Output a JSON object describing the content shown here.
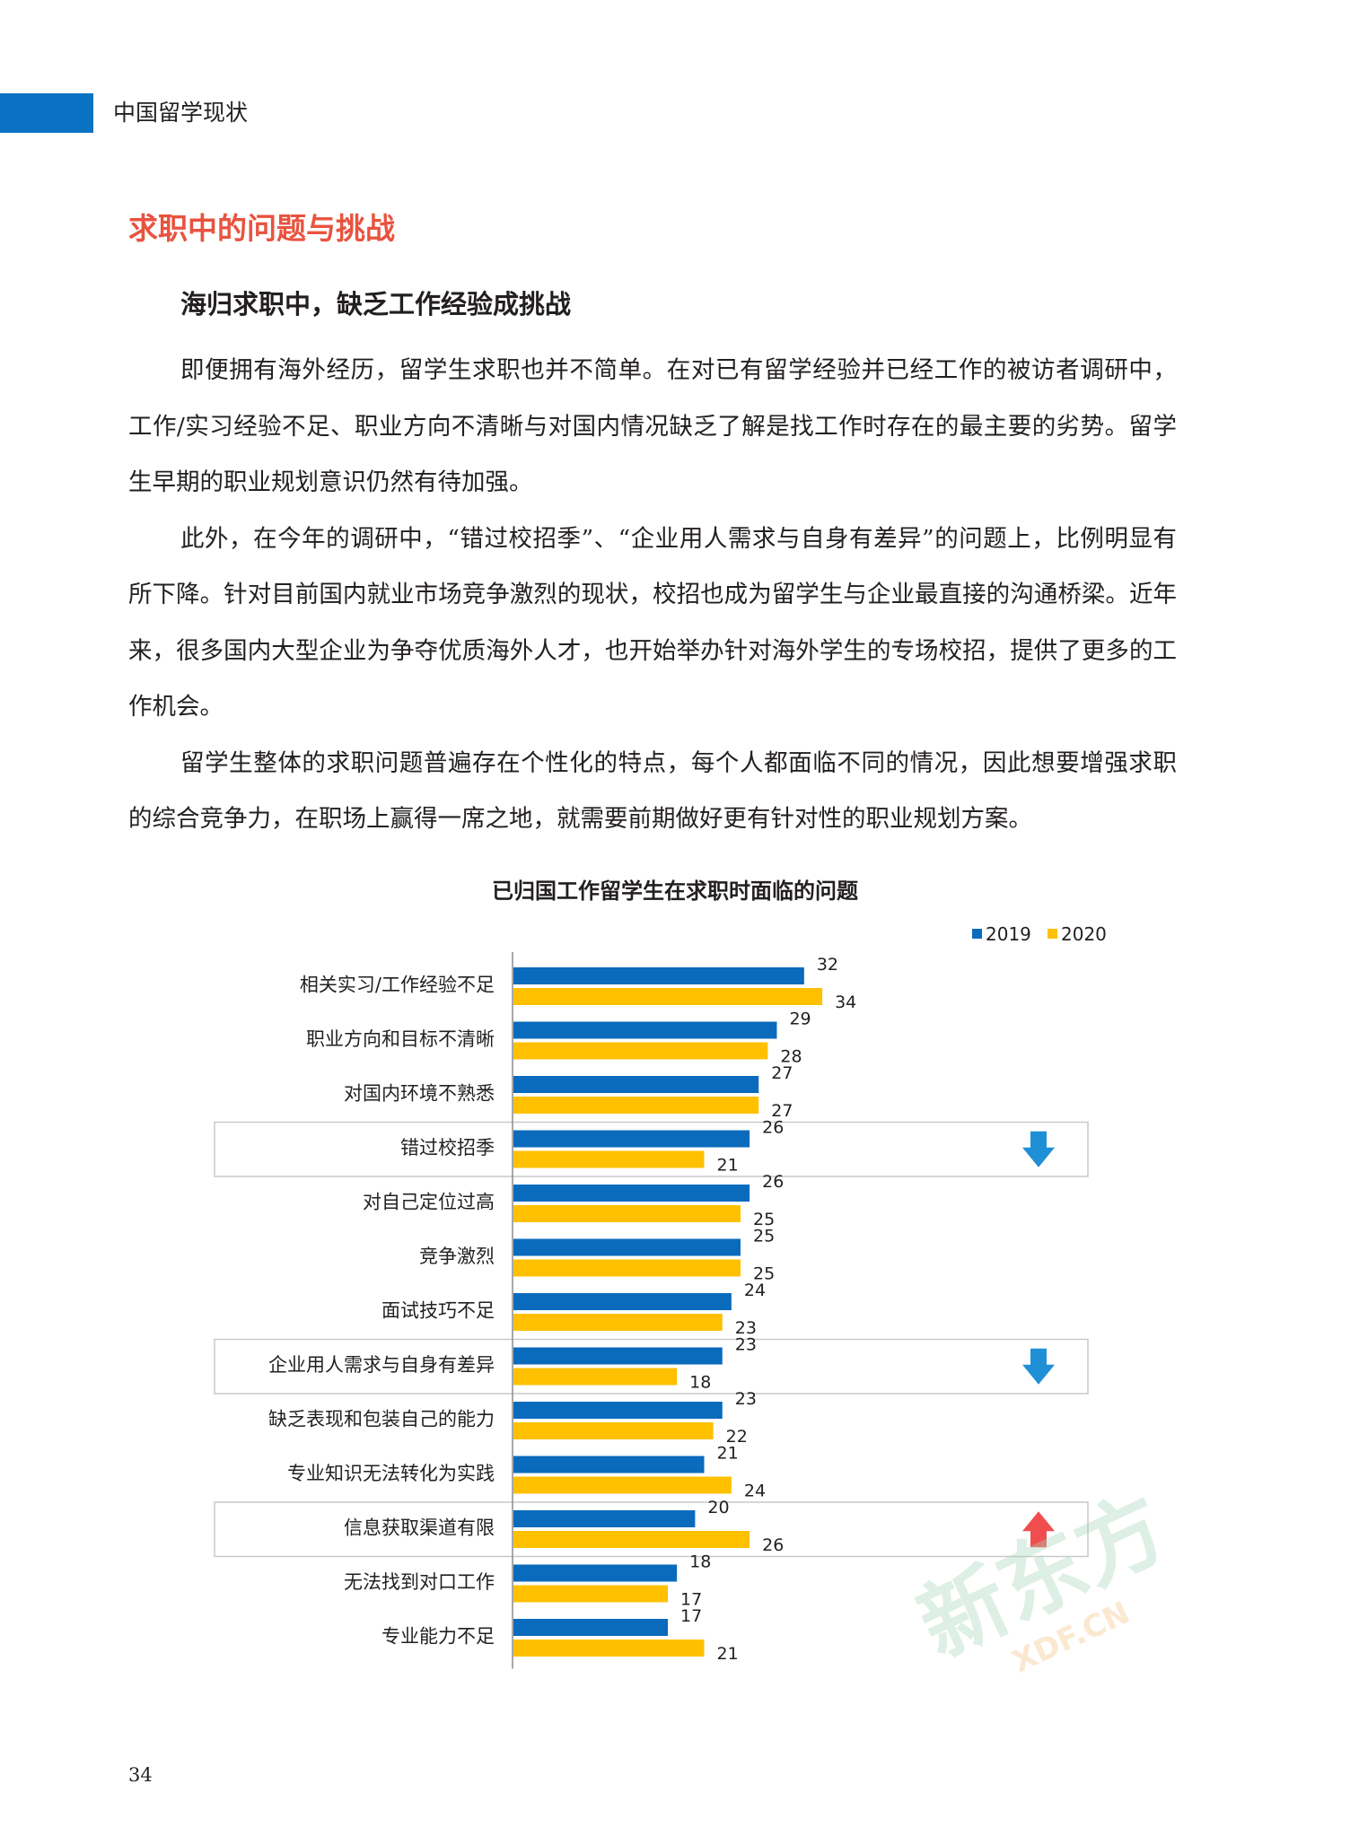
{
  "header": {
    "section_label": "中国留学现状"
  },
  "section_heading": "求职中的问题与挑战",
  "sub_heading": "海归求职中，缺乏工作经验成挑战",
  "paragraphs": [
    "即便拥有海外经历，留学生求职也并不简单。在对已有留学经验并已经工作的被访者调研中，工作/实习经验不足、职业方向不清晰与对国内情况缺乏了解是找工作时存在的最主要的劣势。留学生早期的职业规划意识仍然有待加强。",
    "此外，在今年的调研中，“错过校招季”、“企业用人需求与自身有差异”的问题上，比例明显有所下降。针对目前国内就业市场竞争激烈的现状，校招也成为留学生与企业最直接的沟通桥梁。近年来，很多国内大型企业为争夺优质海外人才，也开始举办针对海外学生的专场校招，提供了更多的工作机会。",
    "留学生整体的求职问题普遍存在个性化的特点，每个人都面临不同的情况，因此想要增强求职的综合竞争力，在职场上赢得一席之地，就需要前期做好更有针对性的职业规划方案。"
  ],
  "chart_data": {
    "type": "bar",
    "orientation": "horizontal",
    "title": "已归国工作留学生在求职时面临的问题",
    "categories": [
      "相关实习/工作经验不足",
      "职业方向和目标不清晰",
      "对国内环境不熟悉",
      "错过校招季",
      "对自己定位过高",
      "竞争激烈",
      "面试技巧不足",
      "企业用人需求与自身有差异",
      "缺乏表现和包装自己的能力",
      "专业知识无法转化为实践",
      "信息获取渠道有限",
      "无法找到对口工作",
      "专业能力不足"
    ],
    "series": [
      {
        "name": "2019",
        "color": "#0a6bbd",
        "values": [
          32,
          29,
          27,
          26,
          26,
          25,
          24,
          23,
          23,
          21,
          20,
          18,
          17
        ]
      },
      {
        "name": "2020",
        "color": "#ffc000",
        "values": [
          34,
          28,
          27,
          21,
          25,
          25,
          23,
          18,
          22,
          24,
          26,
          17,
          21
        ]
      }
    ],
    "legend_position": "top-right",
    "xlim": [
      0,
      40
    ],
    "grid": false,
    "highlights": [
      {
        "category": "错过校招季",
        "trend": "down",
        "arrow_icon": "down-arrow-icon",
        "arrow_color": "#1f8fd6"
      },
      {
        "category": "企业用人需求与自身有差异",
        "trend": "down",
        "arrow_icon": "down-arrow-icon",
        "arrow_color": "#1f8fd6"
      },
      {
        "category": "信息获取渠道有限",
        "trend": "up",
        "arrow_icon": "up-arrow-icon",
        "arrow_color": "#f04e4e"
      }
    ]
  },
  "page_number": "34",
  "watermark": {
    "text_cn": "新东方",
    "text_en": "XDF.CN"
  },
  "colors": {
    "header_bar": "#0a72c2",
    "section_heading": "#e8533f",
    "series_2019": "#0a6bbd",
    "series_2020": "#ffc000"
  }
}
